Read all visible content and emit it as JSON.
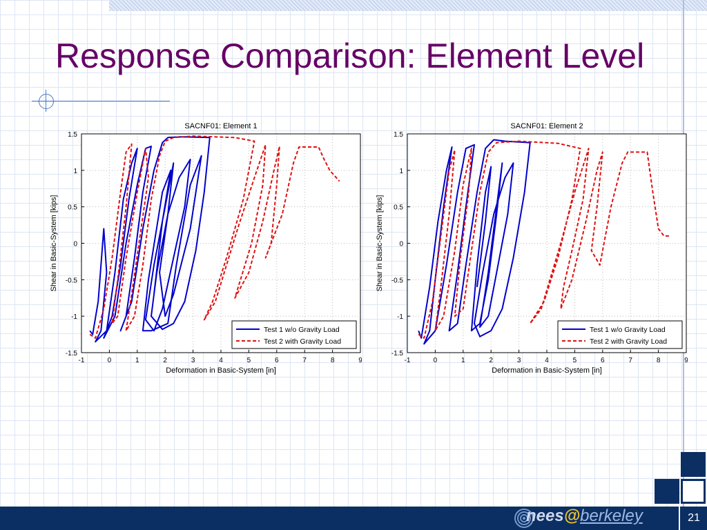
{
  "title": "Response Comparison: Element Level",
  "page_number": "21",
  "logo": {
    "part1": "nees",
    "at": "@",
    "part2": "berkeley"
  },
  "colors": {
    "title": "#660066",
    "footer": "#0b2f63",
    "series1": "#0000cc",
    "series2": "#e01010"
  },
  "chart_data": [
    {
      "type": "line",
      "title": "SACNF01: Element 1",
      "xlabel": "Deformation in Basic-System [in]",
      "ylabel": "Shear in Basic-System [kips]",
      "xlim": [
        -1,
        9
      ],
      "ylim": [
        -1.5,
        1.5
      ],
      "xticks": [
        "-1",
        "0",
        "1",
        "2",
        "3",
        "4",
        "5",
        "6",
        "7",
        "8",
        "9"
      ],
      "yticks": [
        "1.5",
        "1",
        "0.5",
        "0",
        "-0.5",
        "-1",
        "-1.5"
      ],
      "grid": true,
      "legend_position": "bottom-right",
      "series": [
        {
          "name": "Test 1 w/o Gravity Load",
          "color": "#0000cc",
          "style": "solid",
          "points": [
            [
              -0.7,
              -1.2
            ],
            [
              -0.6,
              -1.25
            ],
            [
              -0.4,
              -0.8
            ],
            [
              -0.2,
              0.2
            ],
            [
              -0.1,
              -0.4
            ],
            [
              -0.3,
              -1.2
            ],
            [
              -0.5,
              -1.35
            ],
            [
              -0.1,
              -1.2
            ],
            [
              0.2,
              -0.4
            ],
            [
              0.5,
              0.6
            ],
            [
              0.8,
              1.1
            ],
            [
              1.0,
              1.3
            ],
            [
              0.7,
              0.6
            ],
            [
              0.4,
              -0.3
            ],
            [
              0.1,
              -1.0
            ],
            [
              -0.2,
              -1.3
            ],
            [
              0.2,
              -1.0
            ],
            [
              0.6,
              0.0
            ],
            [
              1.0,
              0.8
            ],
            [
              1.3,
              1.3
            ],
            [
              1.5,
              1.33
            ],
            [
              1.2,
              0.7
            ],
            [
              0.9,
              -0.2
            ],
            [
              0.6,
              -1.0
            ],
            [
              0.4,
              -1.2
            ],
            [
              0.8,
              -0.8
            ],
            [
              1.2,
              0.2
            ],
            [
              1.6,
              1.0
            ],
            [
              1.9,
              1.38
            ],
            [
              2.1,
              1.45
            ],
            [
              2.6,
              1.46
            ],
            [
              3.6,
              1.45
            ],
            [
              3.4,
              0.7
            ],
            [
              3.1,
              -0.1
            ],
            [
              2.7,
              -0.8
            ],
            [
              2.3,
              -1.1
            ],
            [
              1.9,
              -1.18
            ],
            [
              1.5,
              -1.0
            ],
            [
              1.7,
              -0.4
            ],
            [
              2.1,
              0.4
            ],
            [
              2.5,
              0.9
            ],
            [
              2.9,
              1.15
            ],
            [
              2.7,
              0.5
            ],
            [
              2.3,
              -0.2
            ],
            [
              1.9,
              -0.9
            ],
            [
              1.6,
              -1.2
            ],
            [
              1.3,
              -1.05
            ],
            [
              1.6,
              -0.3
            ],
            [
              2.0,
              0.5
            ],
            [
              2.3,
              1.1
            ],
            [
              2.1,
              0.4
            ],
            [
              1.8,
              -0.4
            ],
            [
              2.0,
              -1.0
            ],
            [
              2.3,
              -0.7
            ],
            [
              2.9,
              0.2
            ],
            [
              3.3,
              1.2
            ],
            [
              2.9,
              0.8
            ],
            [
              2.4,
              -0.3
            ],
            [
              2.1,
              -1.1
            ],
            [
              1.5,
              -1.2
            ],
            [
              1.2,
              -1.2
            ],
            [
              1.4,
              -0.5
            ],
            [
              1.9,
              0.7
            ],
            [
              2.2,
              1.0
            ],
            [
              1.9,
              0.3
            ],
            [
              1.6,
              -0.7
            ]
          ]
        },
        {
          "name": "Test 2 with Gravity Load",
          "color": "#e01010",
          "style": "dashed",
          "points": [
            [
              -0.7,
              -1.25
            ],
            [
              -0.5,
              -1.3
            ],
            [
              -0.2,
              -0.9
            ],
            [
              0.1,
              -0.2
            ],
            [
              0.4,
              0.7
            ],
            [
              0.6,
              1.25
            ],
            [
              0.8,
              1.36
            ],
            [
              0.6,
              0.5
            ],
            [
              0.3,
              -0.5
            ],
            [
              0.1,
              -1.1
            ],
            [
              0.3,
              -1.0
            ],
            [
              0.6,
              -0.2
            ],
            [
              1.0,
              0.7
            ],
            [
              1.3,
              1.3
            ],
            [
              1.4,
              0.9
            ],
            [
              1.1,
              0.1
            ],
            [
              0.8,
              -0.7
            ],
            [
              0.6,
              -1.2
            ],
            [
              0.9,
              -1.0
            ],
            [
              1.2,
              -0.3
            ],
            [
              1.5,
              0.6
            ],
            [
              1.8,
              1.2
            ],
            [
              2.0,
              1.4
            ],
            [
              2.3,
              1.45
            ],
            [
              3.0,
              1.47
            ],
            [
              4.5,
              1.45
            ],
            [
              5.2,
              1.4
            ],
            [
              4.8,
              0.6
            ],
            [
              4.2,
              -0.2
            ],
            [
              3.7,
              -0.8
            ],
            [
              3.4,
              -1.05
            ],
            [
              3.8,
              -0.8
            ],
            [
              4.6,
              0.2
            ],
            [
              5.2,
              0.9
            ],
            [
              5.6,
              1.35
            ],
            [
              5.5,
              0.8
            ],
            [
              5.1,
              0.0
            ],
            [
              4.7,
              -0.5
            ],
            [
              4.5,
              -0.75
            ],
            [
              5.0,
              -0.4
            ],
            [
              5.5,
              0.3
            ],
            [
              5.9,
              1.0
            ],
            [
              6.1,
              1.33
            ],
            [
              6.0,
              0.8
            ],
            [
              5.8,
              0.0
            ],
            [
              5.6,
              -0.2
            ],
            [
              6.2,
              0.4
            ],
            [
              6.6,
              1.1
            ],
            [
              6.8,
              1.32
            ],
            [
              7.5,
              1.32
            ],
            [
              7.7,
              1.15
            ],
            [
              7.9,
              1.0
            ],
            [
              8.25,
              0.85
            ]
          ]
        }
      ]
    },
    {
      "type": "line",
      "title": "SACNF01: Element 2",
      "xlabel": "Deformation in Basic-System [in]",
      "ylabel": "Shear in Basic-System [kips]",
      "xlim": [
        -1,
        9
      ],
      "ylim": [
        -1.5,
        1.5
      ],
      "xticks": [
        "-1",
        "0",
        "1",
        "2",
        "3",
        "4",
        "5",
        "6",
        "7",
        "8",
        "9"
      ],
      "yticks": [
        "1.5",
        "1",
        "0.5",
        "0",
        "-0.5",
        "-1",
        "-1.5"
      ],
      "grid": true,
      "legend_position": "bottom-right",
      "series": [
        {
          "name": "Test 1 w/o Gravity Load",
          "color": "#0000cc",
          "style": "solid",
          "points": [
            [
              -0.6,
              -1.2
            ],
            [
              -0.5,
              -1.3
            ],
            [
              -0.2,
              -0.6
            ],
            [
              0.1,
              0.3
            ],
            [
              0.4,
              1.0
            ],
            [
              0.6,
              1.32
            ],
            [
              0.3,
              0.5
            ],
            [
              0.0,
              -0.5
            ],
            [
              -0.2,
              -1.2
            ],
            [
              -0.4,
              -1.38
            ],
            [
              0.0,
              -1.2
            ],
            [
              0.4,
              -0.3
            ],
            [
              0.8,
              0.7
            ],
            [
              1.1,
              1.3
            ],
            [
              1.4,
              1.35
            ],
            [
              1.1,
              0.5
            ],
            [
              0.8,
              -0.4
            ],
            [
              0.5,
              -1.2
            ],
            [
              0.8,
              -1.1
            ],
            [
              1.1,
              -0.3
            ],
            [
              1.5,
              0.7
            ],
            [
              1.8,
              1.3
            ],
            [
              2.1,
              1.42
            ],
            [
              2.5,
              1.4
            ],
            [
              3.4,
              1.38
            ],
            [
              3.2,
              0.7
            ],
            [
              2.8,
              -0.2
            ],
            [
              2.4,
              -0.9
            ],
            [
              2.0,
              -1.2
            ],
            [
              1.6,
              -1.28
            ],
            [
              1.4,
              -1.1
            ],
            [
              1.7,
              -0.4
            ],
            [
              2.1,
              0.4
            ],
            [
              2.5,
              0.9
            ],
            [
              2.8,
              1.1
            ],
            [
              2.6,
              0.4
            ],
            [
              2.2,
              -0.4
            ],
            [
              1.9,
              -1.0
            ],
            [
              1.6,
              -1.15
            ],
            [
              1.9,
              -0.4
            ],
            [
              2.2,
              0.5
            ],
            [
              2.4,
              1.1
            ],
            [
              2.2,
              0.4
            ],
            [
              1.9,
              -0.5
            ],
            [
              1.6,
              -1.1
            ],
            [
              1.3,
              -1.2
            ],
            [
              1.5,
              -0.3
            ],
            [
              1.8,
              0.7
            ],
            [
              2.0,
              1.05
            ],
            [
              1.8,
              0.3
            ],
            [
              1.5,
              -0.6
            ]
          ]
        },
        {
          "name": "Test 2 with Gravity Load",
          "color": "#e01010",
          "style": "dashed",
          "points": [
            [
              -0.6,
              -1.25
            ],
            [
              -0.4,
              -1.3
            ],
            [
              -0.1,
              -0.8
            ],
            [
              0.2,
              0.1
            ],
            [
              0.5,
              1.0
            ],
            [
              0.7,
              1.28
            ],
            [
              0.5,
              0.4
            ],
            [
              0.2,
              -0.6
            ],
            [
              0.0,
              -1.2
            ],
            [
              0.3,
              -1.0
            ],
            [
              0.7,
              -0.1
            ],
            [
              1.0,
              0.8
            ],
            [
              1.3,
              1.3
            ],
            [
              1.2,
              0.7
            ],
            [
              0.9,
              -0.2
            ],
            [
              0.7,
              -1.0
            ],
            [
              1.0,
              -0.9
            ],
            [
              1.3,
              -0.1
            ],
            [
              1.6,
              0.7
            ],
            [
              1.9,
              1.25
            ],
            [
              2.2,
              1.38
            ],
            [
              3.0,
              1.4
            ],
            [
              4.4,
              1.37
            ],
            [
              5.2,
              1.3
            ],
            [
              4.9,
              0.6
            ],
            [
              4.4,
              -0.2
            ],
            [
              3.9,
              -0.8
            ],
            [
              3.4,
              -1.1
            ],
            [
              3.8,
              -0.9
            ],
            [
              4.5,
              0.0
            ],
            [
              5.0,
              0.7
            ],
            [
              5.5,
              1.3
            ],
            [
              5.3,
              0.6
            ],
            [
              4.9,
              -0.1
            ],
            [
              4.6,
              -0.6
            ],
            [
              4.5,
              -0.9
            ],
            [
              4.9,
              -0.5
            ],
            [
              5.4,
              0.3
            ],
            [
              5.8,
              1.0
            ],
            [
              6.0,
              1.25
            ],
            [
              5.8,
              0.5
            ],
            [
              5.6,
              -0.1
            ],
            [
              5.9,
              -0.3
            ],
            [
              6.3,
              0.5
            ],
            [
              6.7,
              1.1
            ],
            [
              6.9,
              1.25
            ],
            [
              7.6,
              1.25
            ],
            [
              7.8,
              0.7
            ],
            [
              8.0,
              0.2
            ],
            [
              8.2,
              0.1
            ],
            [
              8.4,
              0.1
            ]
          ]
        }
      ]
    }
  ]
}
